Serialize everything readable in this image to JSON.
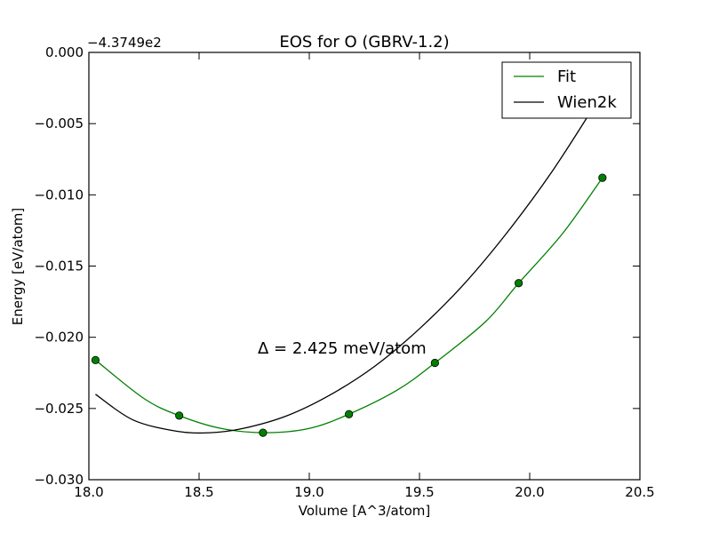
{
  "chart_data": {
    "type": "line",
    "title": "EOS for O (GBRV-1.2)",
    "xlabel": "Volume [A^3/atom]",
    "ylabel": "Energy [eV/atom]",
    "y_offset_label": "−4.3749e2",
    "annotation": "Δ = 2.425 meV/atom",
    "xlim": [
      18.0,
      20.5
    ],
    "ylim": [
      -0.03,
      0.0
    ],
    "x_ticks": [
      18.0,
      18.5,
      19.0,
      19.5,
      20.0,
      20.5
    ],
    "x_tick_labels": [
      "18.0",
      "18.5",
      "19.0",
      "19.5",
      "20.0",
      "20.5"
    ],
    "y_ticks": [
      0.0,
      -0.005,
      -0.01,
      -0.015,
      -0.02,
      -0.025,
      -0.03
    ],
    "y_tick_labels": [
      "0.000",
      "−0.005",
      "−0.010",
      "−0.015",
      "−0.020",
      "−0.025",
      "−0.030"
    ],
    "grid": false,
    "legend": {
      "position": "top-right",
      "entries": [
        {
          "label": "Fit",
          "color": "#008000"
        },
        {
          "label": "Wien2k",
          "color": "#000000"
        }
      ]
    },
    "series": [
      {
        "name": "Fit",
        "style": "line",
        "color": "#008000",
        "x": [
          18.03,
          18.25,
          18.41,
          18.6,
          18.8,
          19.0,
          19.18,
          19.4,
          19.57,
          19.8,
          19.95,
          20.15,
          20.33
        ],
        "y": [
          -0.0216,
          -0.0243,
          -0.0255,
          -0.0264,
          -0.0267,
          -0.0264,
          -0.0254,
          -0.0237,
          -0.0218,
          -0.0189,
          -0.0162,
          -0.0127,
          -0.0088
        ]
      },
      {
        "name": "Wien2k",
        "style": "line",
        "color": "#000000",
        "x": [
          18.03,
          18.2,
          18.4,
          18.55,
          18.7,
          18.9,
          19.1,
          19.3,
          19.5,
          19.7,
          19.9,
          20.1,
          20.3
        ],
        "y": [
          -0.024,
          -0.0258,
          -0.0266,
          -0.0267,
          -0.0264,
          -0.0255,
          -0.024,
          -0.022,
          -0.0194,
          -0.0163,
          -0.0126,
          -0.0084,
          -0.0036
        ]
      },
      {
        "style": "markers",
        "color": "#008000",
        "x": [
          18.03,
          18.41,
          18.79,
          19.18,
          19.57,
          19.95,
          20.33
        ],
        "y": [
          -0.0216,
          -0.0255,
          -0.0267,
          -0.0254,
          -0.0218,
          -0.0162,
          -0.0088
        ]
      }
    ]
  }
}
